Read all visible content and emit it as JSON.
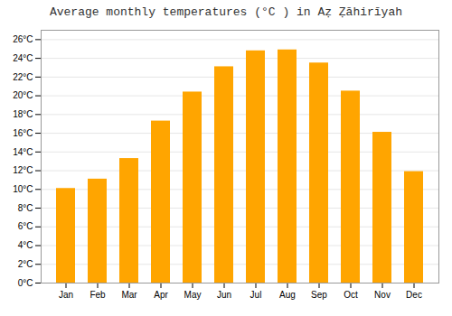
{
  "chart_data": {
    "type": "bar",
    "title": "Average monthly temperatures (°C ) in Aẓ Ẓāhirīyah",
    "categories": [
      "Jan",
      "Feb",
      "Mar",
      "Apr",
      "May",
      "Jun",
      "Jul",
      "Aug",
      "Sep",
      "Oct",
      "Nov",
      "Dec"
    ],
    "values": [
      10.1,
      11.1,
      13.3,
      17.3,
      20.4,
      23.1,
      24.8,
      24.9,
      23.5,
      20.5,
      16.1,
      11.9
    ],
    "color": "#FFA500",
    "ylim": [
      0,
      27
    ],
    "yticks": [
      {
        "value": 0,
        "label": "0°C"
      },
      {
        "value": 2,
        "label": "2°C"
      },
      {
        "value": 4,
        "label": "4°C"
      },
      {
        "value": 6,
        "label": "6°C"
      },
      {
        "value": 8,
        "label": "8°C"
      },
      {
        "value": 10,
        "label": "10°C"
      },
      {
        "value": 12,
        "label": "12°C"
      },
      {
        "value": 14,
        "label": "14°C"
      },
      {
        "value": 16,
        "label": "16°C"
      },
      {
        "value": 18,
        "label": "18°C"
      },
      {
        "value": 20,
        "label": "20°C"
      },
      {
        "value": 22,
        "label": "22°C"
      },
      {
        "value": 24,
        "label": "24°C"
      },
      {
        "value": 26,
        "label": "26°C"
      }
    ],
    "grid": true
  }
}
